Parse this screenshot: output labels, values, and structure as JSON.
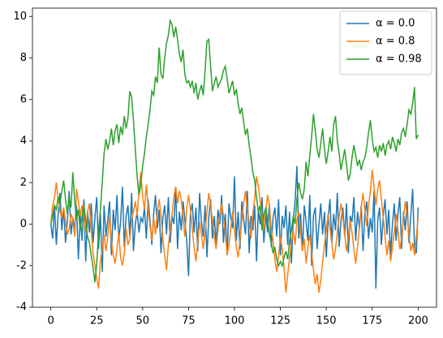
{
  "chart_data": {
    "type": "line",
    "x": [
      0,
      1,
      2,
      3,
      4,
      5,
      6,
      7,
      8,
      9,
      10,
      11,
      12,
      13,
      14,
      15,
      16,
      17,
      18,
      19,
      20,
      21,
      22,
      23,
      24,
      25,
      26,
      27,
      28,
      29,
      30,
      31,
      32,
      33,
      34,
      35,
      36,
      37,
      38,
      39,
      40,
      41,
      42,
      43,
      44,
      45,
      46,
      47,
      48,
      49,
      50,
      51,
      52,
      53,
      54,
      55,
      56,
      57,
      58,
      59,
      60,
      61,
      62,
      63,
      64,
      65,
      66,
      67,
      68,
      69,
      70,
      71,
      72,
      73,
      74,
      75,
      76,
      77,
      78,
      79,
      80,
      81,
      82,
      83,
      84,
      85,
      86,
      87,
      88,
      89,
      90,
      91,
      92,
      93,
      94,
      95,
      96,
      97,
      98,
      99,
      100,
      101,
      102,
      103,
      104,
      105,
      106,
      107,
      108,
      109,
      110,
      111,
      112,
      113,
      114,
      115,
      116,
      117,
      118,
      119,
      120,
      121,
      122,
      123,
      124,
      125,
      126,
      127,
      128,
      129,
      130,
      131,
      132,
      133,
      134,
      135,
      136,
      137,
      138,
      139,
      140,
      141,
      142,
      143,
      144,
      145,
      146,
      147,
      148,
      149,
      150,
      151,
      152,
      153,
      154,
      155,
      156,
      157,
      158,
      159,
      160,
      161,
      162,
      163,
      164,
      165,
      166,
      167,
      168,
      169,
      170,
      171,
      172,
      173,
      174,
      175,
      176,
      177,
      178,
      179,
      180,
      181,
      182,
      183,
      184,
      185,
      186,
      187,
      188,
      189,
      190,
      191,
      192,
      193,
      194,
      195,
      196,
      197,
      198,
      199,
      200
    ],
    "series": [
      {
        "name": "α = 0.0",
        "color": "#1f77b4",
        "values": [
          0.0,
          -0.7,
          0.9,
          -1.0,
          0.5,
          1.5,
          -0.3,
          0.8,
          -0.9,
          0.2,
          1.6,
          -0.5,
          0.3,
          -0.2,
          0.9,
          -1.7,
          0.4,
          -0.8,
          1.2,
          -1.8,
          0.6,
          -0.4,
          1.0,
          -0.9,
          0.3,
          1.3,
          -1.2,
          0.5,
          -2.3,
          0.9,
          -0.6,
          0.2,
          1.1,
          -1.5,
          0.7,
          -0.3,
          1.4,
          -0.8,
          0.1,
          1.8,
          -1.1,
          0.4,
          0.9,
          -0.6,
          1.5,
          -1.3,
          0.0,
          0.6,
          -0.4,
          0.3,
          0.1,
          0.8,
          -0.7,
          1.2,
          0.2,
          -1.0,
          0.5,
          1.4,
          -0.2,
          0.7,
          -1.4,
          0.3,
          0.9,
          -0.5,
          1.3,
          -0.9,
          0.4,
          0.0,
          1.7,
          -1.2,
          0.6,
          -0.3,
          1.1,
          0.2,
          -0.8,
          -2.5,
          0.5,
          1.0,
          -0.4,
          0.8,
          -1.3,
          1.5,
          0.1,
          -0.6,
          0.9,
          -1.6,
          0.3,
          1.2,
          -0.7,
          0.4,
          -1.0,
          0.7,
          0.0,
          1.4,
          -0.9,
          0.5,
          -1.5,
          1.0,
          0.3,
          -0.2,
          2.3,
          -0.8,
          0.6,
          -1.2,
          1.1,
          0.2,
          -0.5,
          1.6,
          -1.4,
          0.4,
          -0.3,
          0.9,
          -1.8,
          0.7,
          0.0,
          1.3,
          -0.9,
          0.5,
          -0.4,
          1.0,
          -1.1,
          0.3,
          0.8,
          -0.6,
          1.2,
          -1.5,
          0.4,
          -0.2,
          0.9,
          -1.0,
          0.6,
          -1.9,
          0.2,
          1.1,
          2.8,
          -0.7,
          0.5,
          -1.3,
          0.9,
          0.1,
          -0.8,
          1.4,
          -2.0,
          0.4,
          0.8,
          -1.2,
          0.0,
          1.0,
          -0.5,
          0.6,
          -1.6,
          0.3,
          1.2,
          -0.9,
          0.5,
          -0.3,
          1.5,
          -1.1,
          0.2,
          0.8,
          -0.6,
          1.0,
          -1.4,
          0.4,
          0.1,
          1.3,
          -0.8,
          0.6,
          -0.2,
          0.9,
          -1.3,
          0.5,
          1.1,
          -0.7,
          0.3,
          -0.4,
          1.6,
          -3.1,
          0.2,
          0.8,
          -1.0,
          0.4,
          1.2,
          -0.5,
          0.7,
          -1.5,
          0.0,
          1.0,
          -0.8,
          0.5,
          1.3,
          -1.2,
          0.6,
          -0.3,
          1.1,
          -0.9,
          0.4,
          1.7,
          -1.1,
          -1.4,
          0.8
        ]
      },
      {
        "name": "α = 0.8",
        "color": "#ff7f0e",
        "values": [
          0.0,
          0.9,
          1.3,
          2.0,
          1.2,
          0.6,
          0.3,
          0.8,
          0.1,
          -0.5,
          -0.2,
          0.5,
          0.2,
          -0.6,
          1.7,
          1.1,
          0.4,
          0.9,
          0.3,
          -0.4,
          0.6,
          1.0,
          -0.3,
          -1.4,
          -2.0,
          -2.6,
          -3.1,
          -1.8,
          -1.2,
          -0.5,
          -1.3,
          -0.6,
          0.4,
          -0.8,
          -1.5,
          -1.9,
          -1.2,
          -0.4,
          -1.6,
          -2.0,
          -1.4,
          -0.2,
          -1.0,
          -0.7,
          0.2,
          0.6,
          1.1,
          0.4,
          1.6,
          2.5,
          1.3,
          0.7,
          1.9,
          0.8,
          -0.1,
          -0.8,
          0.3,
          -0.5,
          0.6,
          1.2,
          0.4,
          -0.7,
          -1.5,
          -2.2,
          -1.0,
          -0.3,
          0.5,
          1.3,
          1.8,
          1.0,
          1.6,
          1.2,
          0.3,
          -0.6,
          0.8,
          1.4,
          0.7,
          -0.2,
          -1.1,
          -1.8,
          -0.9,
          0.1,
          -0.5,
          -1.2,
          -0.4,
          0.6,
          1.5,
          0.9,
          0.2,
          -0.6,
          -1.2,
          -0.3,
          0.5,
          1.0,
          0.4,
          -0.4,
          -1.5,
          -1.0,
          -0.2,
          0.6,
          -0.3,
          -1.1,
          -1.6,
          -0.8,
          0.2,
          1.0,
          1.6,
          0.7,
          0.1,
          -0.7,
          0.5,
          1.2,
          2.3,
          1.8,
          1.1,
          0.4,
          -0.3,
          0.6,
          1.4,
          0.9,
          -0.2,
          -0.8,
          -1.7,
          -2.3,
          -1.5,
          -0.6,
          -1.2,
          -2.1,
          -3.3,
          -2.4,
          -1.6,
          -0.9,
          -0.3,
          -1.0,
          0.2,
          0.6,
          -0.4,
          -1.3,
          -0.7,
          -1.9,
          -1.1,
          -0.5,
          -1.4,
          -2.2,
          -2.9,
          -2.4,
          -3.3,
          -2.7,
          -1.8,
          -1.0,
          -0.3,
          0.5,
          -0.2,
          -0.9,
          -1.7,
          -1.2,
          -0.4,
          0.4,
          1.0,
          0.3,
          -0.5,
          -1.3,
          -0.6,
          0.2,
          -0.4,
          -1.2,
          -1.9,
          -1.1,
          -0.2,
          0.8,
          1.5,
          0.7,
          -0.1,
          0.9,
          1.6,
          2.6,
          1.8,
          0.9,
          1.7,
          2.1,
          1.2,
          0.3,
          -0.6,
          -1.5,
          -0.8,
          -1.8,
          -1.1,
          -0.4,
          0.5,
          -0.3,
          -1.2,
          -0.7,
          0.3,
          1.1,
          0.4,
          -0.5,
          -1.3,
          -0.9,
          -1.5,
          -0.6,
          0.3
        ]
      },
      {
        "name": "α = 0.98",
        "color": "#2ca02c",
        "values": [
          0.0,
          0.4,
          0.9,
          0.7,
          1.3,
          1.0,
          1.6,
          2.1,
          1.2,
          0.5,
          1.3,
          0.8,
          2.5,
          1.1,
          0.2,
          0.7,
          -0.3,
          0.4,
          0.9,
          0.2,
          -0.6,
          -0.9,
          -1.5,
          -2.1,
          -2.8,
          -1.9,
          -0.4,
          0.7,
          2.0,
          3.4,
          4.1,
          3.6,
          4.0,
          4.6,
          3.8,
          4.5,
          4.8,
          3.9,
          4.7,
          4.3,
          5.2,
          4.6,
          5.1,
          6.4,
          6.1,
          5.0,
          3.6,
          2.3,
          1.4,
          1.9,
          2.8,
          3.4,
          4.2,
          4.8,
          5.5,
          6.4,
          6.2,
          7.1,
          6.8,
          8.5,
          7.2,
          7.0,
          8.0,
          8.7,
          9.1,
          9.8,
          9.6,
          9.0,
          9.5,
          8.9,
          8.2,
          7.8,
          8.4,
          7.2,
          6.8,
          6.9,
          6.6,
          6.9,
          6.3,
          6.8,
          6.0,
          6.4,
          6.7,
          6.2,
          7.4,
          8.8,
          8.9,
          7.6,
          6.4,
          6.8,
          7.1,
          6.6,
          6.8,
          7.0,
          7.4,
          7.6,
          7.0,
          6.3,
          6.6,
          6.9,
          6.2,
          6.5,
          5.8,
          5.3,
          5.6,
          4.9,
          4.3,
          4.6,
          3.8,
          3.2,
          2.5,
          2.1,
          1.3,
          0.6,
          0.9,
          -0.3,
          0.4,
          0.8,
          0.2,
          -0.5,
          -0.9,
          -1.4,
          -1.1,
          -1.7,
          -2.0,
          -1.8,
          -2.0,
          -1.6,
          -1.3,
          -1.7,
          -0.8,
          -0.3,
          0.4,
          0.0,
          1.2,
          2.0,
          1.5,
          1.2,
          1.7,
          3.0,
          2.3,
          3.3,
          4.2,
          5.3,
          4.5,
          3.6,
          3.2,
          3.9,
          4.6,
          3.6,
          2.9,
          3.5,
          4.2,
          3.5,
          4.8,
          5.2,
          4.0,
          3.4,
          2.6,
          3.1,
          3.6,
          2.9,
          2.1,
          2.4,
          3.2,
          3.8,
          3.3,
          2.8,
          3.1,
          2.6,
          3.0,
          3.2,
          3.7,
          4.4,
          5.0,
          4.1,
          3.5,
          3.7,
          3.2,
          3.8,
          3.5,
          3.9,
          3.3,
          3.8,
          4.0,
          3.6,
          4.2,
          3.9,
          3.5,
          4.1,
          3.8,
          4.4,
          4.6,
          4.2,
          4.8,
          5.5,
          5.3,
          5.8,
          6.6,
          4.1,
          4.3
        ]
      }
    ],
    "xlim": [
      -10,
      210
    ],
    "xticks": [
      0,
      25,
      50,
      75,
      100,
      125,
      150,
      175,
      200
    ],
    "ylim": [
      -4,
      10.4
    ],
    "yticks": [
      -4,
      -2,
      0,
      2,
      4,
      6,
      8,
      10
    ],
    "grid": false,
    "legend": "upper right"
  }
}
